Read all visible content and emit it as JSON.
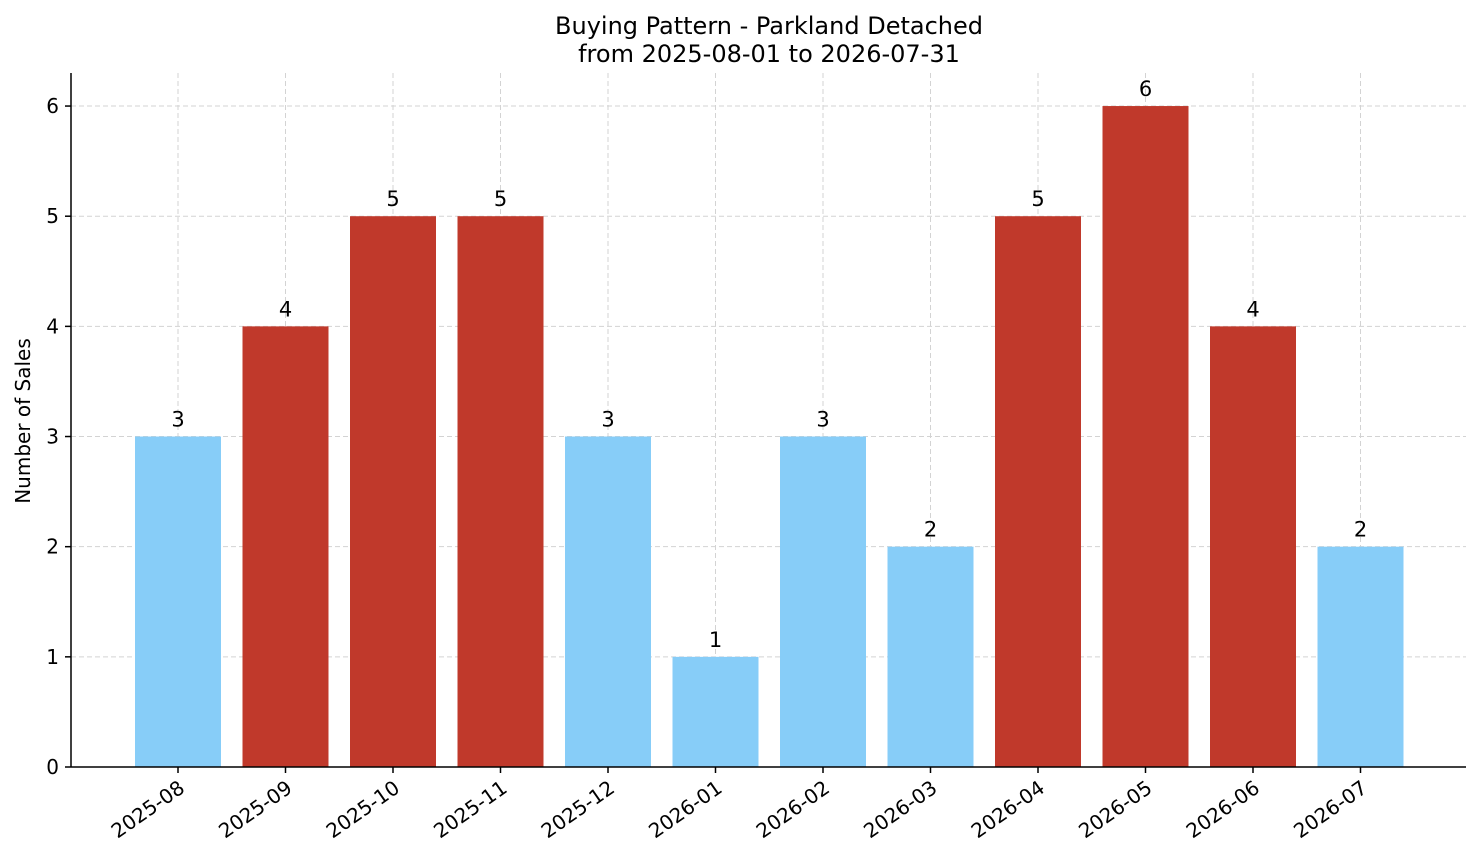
{
  "chart_data": {
    "type": "bar",
    "title": "Buying Pattern - Parkland Detached",
    "subtitle": "from 2025-08-01 to 2026-07-31",
    "xlabel": "",
    "ylabel": "Number of Sales",
    "categories": [
      "2025-08",
      "2025-09",
      "2025-10",
      "2025-11",
      "2025-12",
      "2026-01",
      "2026-02",
      "2026-03",
      "2026-04",
      "2026-05",
      "2026-06",
      "2026-07"
    ],
    "values": [
      3,
      4,
      5,
      5,
      3,
      1,
      3,
      2,
      5,
      6,
      4,
      2
    ],
    "bar_colors": [
      "#87CDF8",
      "#C0392B",
      "#C0392B",
      "#C0392B",
      "#87CDF8",
      "#87CDF8",
      "#87CDF8",
      "#87CDF8",
      "#C0392B",
      "#C0392B",
      "#C0392B",
      "#87CDF8"
    ],
    "ylim": [
      0,
      6.3
    ],
    "yticks": [
      0,
      1,
      2,
      3,
      4,
      5,
      6
    ],
    "grid": true,
    "legend": null,
    "data_labels": true,
    "xtick_rotation": -35
  }
}
